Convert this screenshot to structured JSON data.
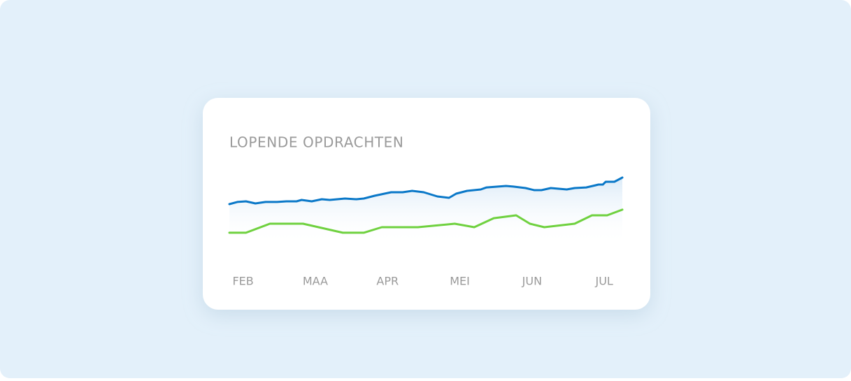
{
  "chart_data": {
    "type": "line",
    "title": "LOPENDE OPDRACHTEN",
    "xlim": [
      -0.19,
      5.25
    ],
    "ylim": [
      0,
      100
    ],
    "xticks": [
      {
        "value": 0,
        "label": "FEB"
      },
      {
        "value": 1,
        "label": "MAA"
      },
      {
        "value": 2,
        "label": "APR"
      },
      {
        "value": 3,
        "label": "MEI"
      },
      {
        "value": 4,
        "label": "JUN"
      },
      {
        "value": 5,
        "label": "JUL"
      }
    ],
    "area_fill": true,
    "series": [
      {
        "color": "#0a78c8",
        "x": [
          -0.19,
          -0.08,
          0.04,
          0.17,
          0.31,
          0.47,
          0.6,
          0.74,
          0.81,
          0.95,
          1.09,
          1.2,
          1.41,
          1.57,
          1.67,
          1.82,
          2.05,
          2.21,
          2.34,
          2.5,
          2.69,
          2.85,
          2.95,
          3.1,
          3.29,
          3.37,
          3.64,
          3.74,
          3.91,
          4.03,
          4.13,
          4.26,
          4.48,
          4.59,
          4.75,
          4.84,
          4.92,
          4.98,
          5.02,
          5.14,
          5.25
        ],
        "values": [
          52.7,
          55.5,
          56.4,
          53.6,
          55.5,
          55.5,
          56.4,
          56.4,
          58.2,
          56.4,
          59.1,
          58.2,
          60,
          59.1,
          60,
          63.6,
          68.2,
          68.2,
          70,
          68.2,
          62.7,
          60.9,
          66.4,
          70,
          71.8,
          74.5,
          76.4,
          75.5,
          73.6,
          70.9,
          70.9,
          73.6,
          71.8,
          73.6,
          74.5,
          76.4,
          78.2,
          78.2,
          81.8,
          81.8,
          87.3
        ]
      },
      {
        "color": "#6fd13f",
        "x": [
          -0.19,
          0.04,
          0.37,
          0.83,
          1.38,
          1.67,
          1.92,
          2.42,
          2.93,
          3.2,
          3.47,
          3.78,
          3.97,
          4.17,
          4.59,
          4.83,
          5.04,
          5.25
        ],
        "values": [
          15.5,
          15.5,
          27.3,
          27.3,
          15.5,
          15.5,
          22.7,
          22.7,
          27.3,
          22.7,
          34.5,
          38.2,
          27.3,
          22.7,
          27.3,
          38.2,
          38.2,
          45.5
        ]
      }
    ]
  }
}
